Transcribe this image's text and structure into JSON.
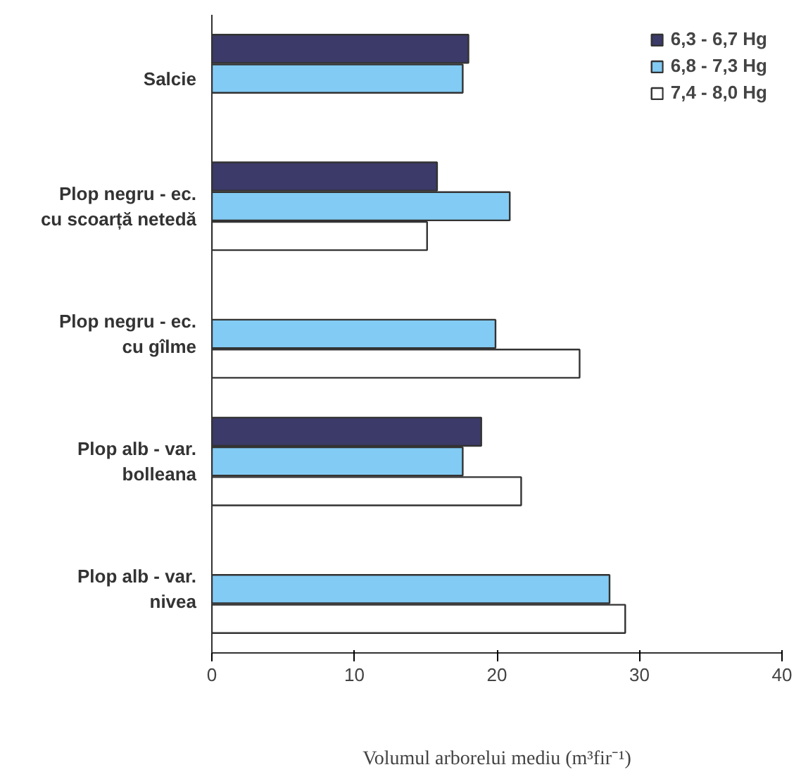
{
  "chart_data": {
    "type": "bar",
    "orientation": "horizontal",
    "categories": [
      "Salcie",
      "Plop negru - ec. cu scoarță netedă",
      "Plop negru - ec. cu gîlme",
      "Plop alb - var. bolleana",
      "Plop alb - var. nivea"
    ],
    "series": [
      {
        "name": "6,3 - 6,7 Hg",
        "color": "#3b3a68",
        "values": [
          18.0,
          15.8,
          null,
          18.9,
          null
        ]
      },
      {
        "name": "6,8 - 7,3 Hg",
        "color": "#82cbf4",
        "values": [
          17.6,
          20.9,
          19.9,
          17.6,
          27.9
        ]
      },
      {
        "name": "7,4 - 8,0 Hg",
        "color": "#ffffff",
        "values": [
          null,
          15.1,
          25.8,
          21.7,
          29.0
        ]
      }
    ],
    "xlabel": "Volumul arborelui mediu (m³fir⁻¹)",
    "xlim": [
      0,
      40
    ],
    "xticks": [
      0,
      10,
      20,
      30,
      40
    ],
    "grid": false,
    "legend": "top right"
  }
}
